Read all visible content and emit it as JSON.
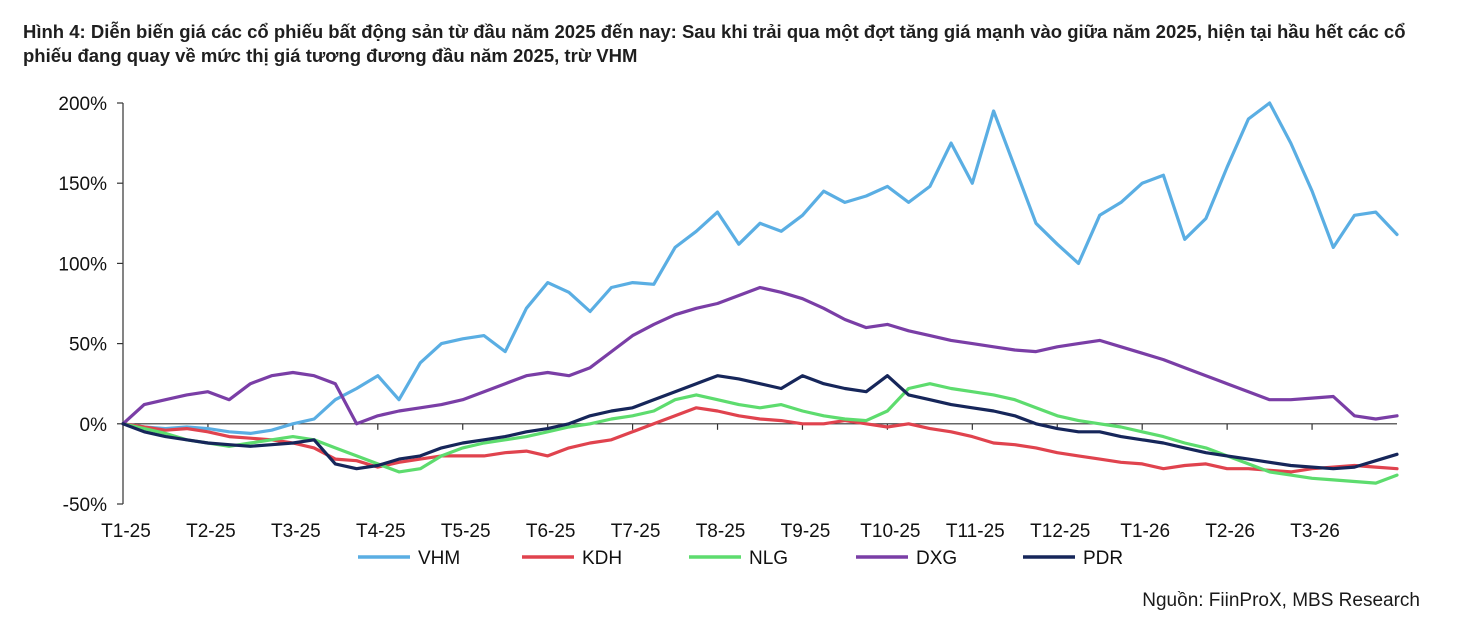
{
  "figure": {
    "title": "Hình 4: Diễn biến giá các cổ phiếu bất động sản từ đầu năm 2025 đến nay: Sau khi trải qua một đợt tăng giá mạnh vào giữa năm 2025, hiện tại hầu hết các cổ phiếu đang quay về mức thị giá tương đương đầu năm 2025, trừ VHM",
    "source": "Nguồn: FiinProX, MBS Research"
  },
  "chart_data": {
    "type": "line",
    "title": "",
    "xlabel": "",
    "ylabel": "",
    "ylim": [
      -50,
      200
    ],
    "yticks": [
      200,
      150,
      100,
      50,
      0,
      -50
    ],
    "ytick_labels": [
      "200%",
      "150%",
      "100%",
      "50%",
      "0%",
      "-50%"
    ],
    "x_index_range": [
      0,
      15
    ],
    "x": [
      0,
      0.25,
      0.5,
      0.75,
      1,
      1.25,
      1.5,
      1.75,
      2,
      2.25,
      2.5,
      2.75,
      3,
      3.25,
      3.5,
      3.75,
      4,
      4.25,
      4.5,
      4.75,
      5,
      5.25,
      5.5,
      5.75,
      6,
      6.25,
      6.5,
      6.75,
      7,
      7.25,
      7.5,
      7.75,
      8,
      8.25,
      8.5,
      8.75,
      9,
      9.25,
      9.5,
      9.75,
      10,
      10.25,
      10.5,
      10.75,
      11,
      11.25,
      11.5,
      11.75,
      12,
      12.25,
      12.5,
      12.75,
      13,
      13.25,
      13.5,
      13.75,
      14,
      14.25,
      14.5,
      14.75,
      15
    ],
    "x_tick_positions": [
      0,
      1,
      2,
      3,
      4,
      5,
      6,
      7,
      8,
      9,
      10,
      11,
      12,
      13,
      14
    ],
    "x_tick_labels": [
      "T1-25",
      "T2-25",
      "T3-25",
      "T4-25",
      "T5-25",
      "T6-25",
      "T7-25",
      "T8-25",
      "T9-25",
      "T10-25",
      "T11-25",
      "T12-25",
      "T1-26",
      "T2-26",
      "T3-26"
    ],
    "legend_position": "bottom",
    "grid": false,
    "series": [
      {
        "name": "VHM",
        "color": "#5aaee3",
        "values": [
          0,
          -2,
          -3,
          -2,
          -3,
          -5,
          -6,
          -4,
          0,
          3,
          15,
          22,
          30,
          15,
          38,
          50,
          53,
          55,
          45,
          72,
          88,
          82,
          70,
          85,
          88,
          87,
          110,
          120,
          132,
          112,
          125,
          120,
          130,
          145,
          138,
          142,
          148,
          138,
          148,
          175,
          150,
          195,
          160,
          125,
          112,
          100,
          130,
          138,
          150,
          155,
          115,
          128,
          160,
          190,
          200,
          175,
          145,
          110,
          130,
          132,
          118
        ]
      },
      {
        "name": "KDH",
        "color": "#e0434e",
        "values": [
          0,
          -2,
          -4,
          -3,
          -5,
          -8,
          -9,
          -10,
          -12,
          -15,
          -22,
          -23,
          -27,
          -24,
          -22,
          -20,
          -20,
          -20,
          -18,
          -17,
          -20,
          -15,
          -12,
          -10,
          -5,
          0,
          5,
          10,
          8,
          5,
          3,
          2,
          0,
          0,
          2,
          0,
          -2,
          0,
          -3,
          -5,
          -8,
          -12,
          -13,
          -15,
          -18,
          -20,
          -22,
          -24,
          -25,
          -28,
          -26,
          -25,
          -28,
          -28,
          -29,
          -30,
          -28,
          -27,
          -26,
          -27,
          -28
        ]
      },
      {
        "name": "NLG",
        "color": "#5ddc6e",
        "values": [
          0,
          -3,
          -6,
          -10,
          -12,
          -14,
          -12,
          -10,
          -8,
          -10,
          -15,
          -20,
          -25,
          -30,
          -28,
          -20,
          -15,
          -12,
          -10,
          -8,
          -5,
          -2,
          0,
          3,
          5,
          8,
          15,
          18,
          15,
          12,
          10,
          12,
          8,
          5,
          3,
          2,
          8,
          22,
          25,
          22,
          20,
          18,
          15,
          10,
          5,
          2,
          0,
          -2,
          -5,
          -8,
          -12,
          -15,
          -20,
          -25,
          -30,
          -32,
          -34,
          -35,
          -36,
          -37,
          -32
        ]
      },
      {
        "name": "DXG",
        "color": "#7a3ea6",
        "values": [
          0,
          12,
          15,
          18,
          20,
          15,
          25,
          30,
          32,
          30,
          25,
          0,
          5,
          8,
          10,
          12,
          15,
          20,
          25,
          30,
          32,
          30,
          35,
          45,
          55,
          62,
          68,
          72,
          75,
          80,
          85,
          82,
          78,
          72,
          65,
          60,
          62,
          58,
          55,
          52,
          50,
          48,
          46,
          45,
          48,
          50,
          52,
          48,
          44,
          40,
          35,
          30,
          25,
          20,
          15,
          15,
          16,
          17,
          5,
          3,
          5
        ]
      },
      {
        "name": "PDR",
        "color": "#16265a",
        "values": [
          0,
          -5,
          -8,
          -10,
          -12,
          -13,
          -14,
          -13,
          -12,
          -10,
          -25,
          -28,
          -26,
          -22,
          -20,
          -15,
          -12,
          -10,
          -8,
          -5,
          -3,
          0,
          5,
          8,
          10,
          15,
          20,
          25,
          30,
          28,
          25,
          22,
          30,
          25,
          22,
          20,
          30,
          18,
          15,
          12,
          10,
          8,
          5,
          0,
          -3,
          -5,
          -5,
          -8,
          -10,
          -12,
          -15,
          -18,
          -20,
          -22,
          -24,
          -26,
          -27,
          -28,
          -27,
          -23,
          -19
        ]
      }
    ]
  }
}
